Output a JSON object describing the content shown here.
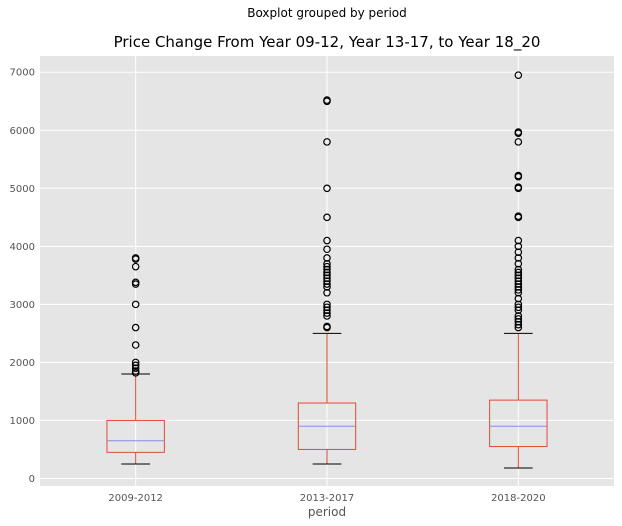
{
  "chart_data": {
    "type": "boxplot",
    "suptitle": "Boxplot grouped by period",
    "title": "Price Change From Year 09-12, Year 13-17, to Year 18_20",
    "xlabel": "period",
    "ylabel": "",
    "ylim": [
      -130,
      7280
    ],
    "yticks": [
      0,
      1000,
      2000,
      3000,
      4000,
      5000,
      6000,
      7000
    ],
    "grid": true,
    "colors": {
      "background": "#e5e5e5",
      "grid": "#ffffff",
      "box": "#e24a33",
      "median": "#8b8be8",
      "whisker_cap": "#000000",
      "flier": "#000000"
    },
    "categories": [
      "2009-2012",
      "2013-2017",
      "2018-2020"
    ],
    "boxes": [
      {
        "label": "2009-2012",
        "whisker_low": 250,
        "q1": 450,
        "median": 650,
        "q3": 1000,
        "whisker_high": 1800,
        "fliers": [
          1820,
          1850,
          1900,
          1950,
          2000,
          2300,
          2600,
          3000,
          3350,
          3380,
          3650,
          3780,
          3800
        ]
      },
      {
        "label": "2013-2017",
        "whisker_low": 250,
        "q1": 500,
        "median": 900,
        "q3": 1300,
        "whisker_high": 2500,
        "fliers": [
          2600,
          2620,
          2800,
          2850,
          2900,
          2950,
          3000,
          3200,
          3300,
          3350,
          3400,
          3450,
          3500,
          3550,
          3600,
          3650,
          3700,
          3800,
          3950,
          4100,
          4500,
          5000,
          5800,
          6500,
          6520
        ]
      },
      {
        "label": "2018-2020",
        "whisker_low": 180,
        "q1": 550,
        "median": 900,
        "q3": 1350,
        "whisker_high": 2500,
        "fliers": [
          2600,
          2650,
          2700,
          2750,
          2800,
          2900,
          2950,
          3000,
          3100,
          3200,
          3250,
          3300,
          3350,
          3400,
          3450,
          3500,
          3550,
          3600,
          3700,
          3800,
          3900,
          4000,
          4100,
          4500,
          4520,
          5000,
          5020,
          5200,
          5220,
          5800,
          5950,
          5970,
          6950
        ]
      }
    ]
  }
}
